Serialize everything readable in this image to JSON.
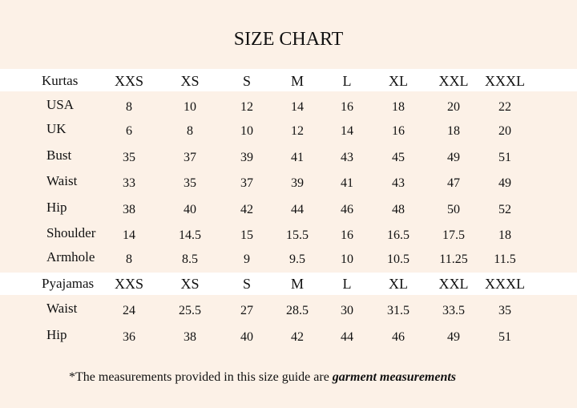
{
  "title": "SIZE CHART",
  "kurtas": {
    "header": [
      "Kurtas",
      "XXS",
      "XS",
      "S",
      "M",
      "L",
      "XL",
      "XXL",
      "XXXL"
    ],
    "rows": [
      [
        "USA",
        8,
        10,
        12,
        14,
        16,
        18,
        20,
        22
      ],
      [
        "UK",
        6,
        8,
        10,
        12,
        14,
        16,
        18,
        20
      ],
      [
        "Bust",
        35,
        37,
        39,
        41,
        43,
        45,
        49,
        51
      ],
      [
        "Waist",
        33,
        35,
        37,
        39,
        41,
        43,
        47,
        49
      ],
      [
        "Hip",
        38,
        40,
        42,
        44,
        46,
        48,
        50,
        52
      ],
      [
        "Shoulder",
        14,
        14.5,
        15,
        15.5,
        16,
        16.5,
        17.5,
        18
      ],
      [
        "Armhole",
        8,
        8.5,
        9,
        9.5,
        10,
        10.5,
        11.25,
        11.5
      ]
    ]
  },
  "pyajamas": {
    "header": [
      "Pyajamas",
      "XXS",
      "XS",
      "S",
      "M",
      "L",
      "XL",
      "XXL",
      "XXXL"
    ],
    "rows": [
      [
        "Waist",
        24,
        25.5,
        27,
        28.5,
        30,
        31.5,
        33.5,
        35
      ],
      [
        "Hip",
        36,
        38,
        40,
        42,
        44,
        46,
        49,
        51
      ]
    ]
  },
  "footnote": {
    "text": "*The measurements provided in this size guide are",
    "emphasis": "garment measurements"
  }
}
